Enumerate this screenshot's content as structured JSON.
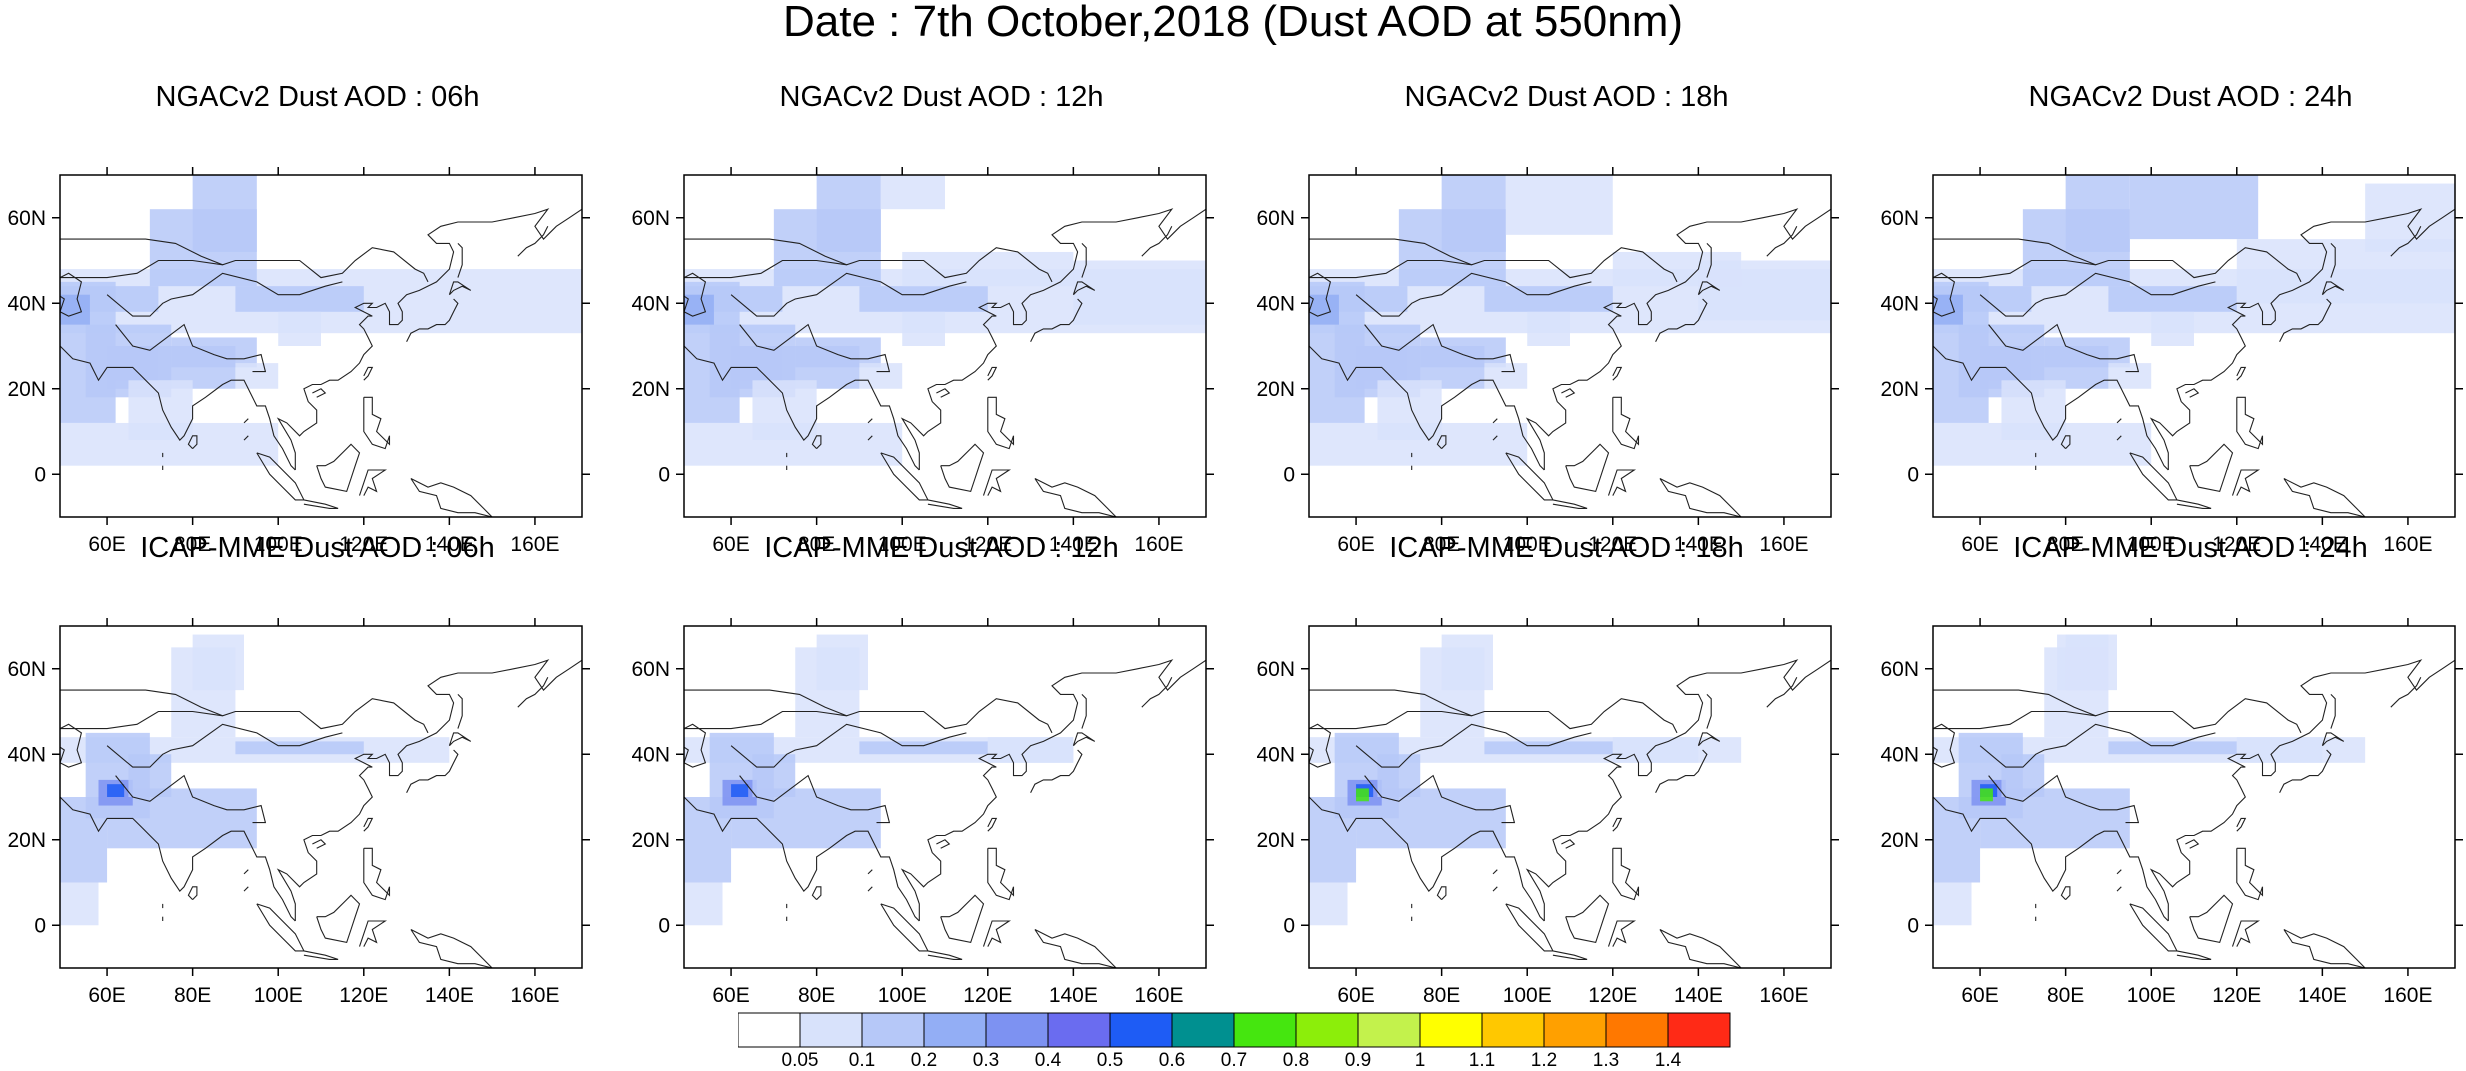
{
  "figure": {
    "title": "Date : 7th October,2018 (Dust AOD at 550nm)"
  },
  "axes": {
    "x_ticks": [
      "60E",
      "80E",
      "100E",
      "120E",
      "140E",
      "160E"
    ],
    "x_tick_values": [
      60,
      80,
      100,
      120,
      140,
      160
    ],
    "y_ticks": [
      "60N",
      "40N",
      "20N",
      "0"
    ],
    "y_tick_values": [
      60,
      40,
      20,
      0
    ],
    "lon_range": [
      49,
      171
    ],
    "lat_range": [
      -10,
      70
    ]
  },
  "panels": [
    {
      "title": "NGACv2 Dust AOD : 06h",
      "model": "NGACv2",
      "hour": "06h"
    },
    {
      "title": "NGACv2 Dust AOD : 12h",
      "model": "NGACv2",
      "hour": "12h"
    },
    {
      "title": "NGACv2 Dust AOD : 18h",
      "model": "NGACv2",
      "hour": "18h"
    },
    {
      "title": "NGACv2 Dust AOD : 24h",
      "model": "NGACv2",
      "hour": "24h"
    },
    {
      "title": "ICAP-MME Dust AOD : 06h",
      "model": "ICAP-MME",
      "hour": "06h"
    },
    {
      "title": "ICAP-MME Dust AOD : 12h",
      "model": "ICAP-MME",
      "hour": "12h"
    },
    {
      "title": "ICAP-MME Dust AOD : 18h",
      "model": "ICAP-MME",
      "hour": "18h"
    },
    {
      "title": "ICAP-MME Dust AOD : 24h",
      "model": "ICAP-MME",
      "hour": "24h"
    }
  ],
  "colorbar": {
    "levels": [
      "0.05",
      "0.1",
      "0.2",
      "0.3",
      "0.4",
      "0.5",
      "0.6",
      "0.7",
      "0.8",
      "0.9",
      "1",
      "1.1",
      "1.2",
      "1.3",
      "1.4"
    ],
    "colors": [
      "#ffffff",
      "#d8e2fb",
      "#b6c8f8",
      "#93aef5",
      "#7d92f2",
      "#6a6cf0",
      "#1e5cf5",
      "#009090",
      "#45e60f",
      "#8cee0a",
      "#c3f24c",
      "#ffff00",
      "#ffc800",
      "#ffa000",
      "#ff7800",
      "#ff2a16"
    ]
  }
}
